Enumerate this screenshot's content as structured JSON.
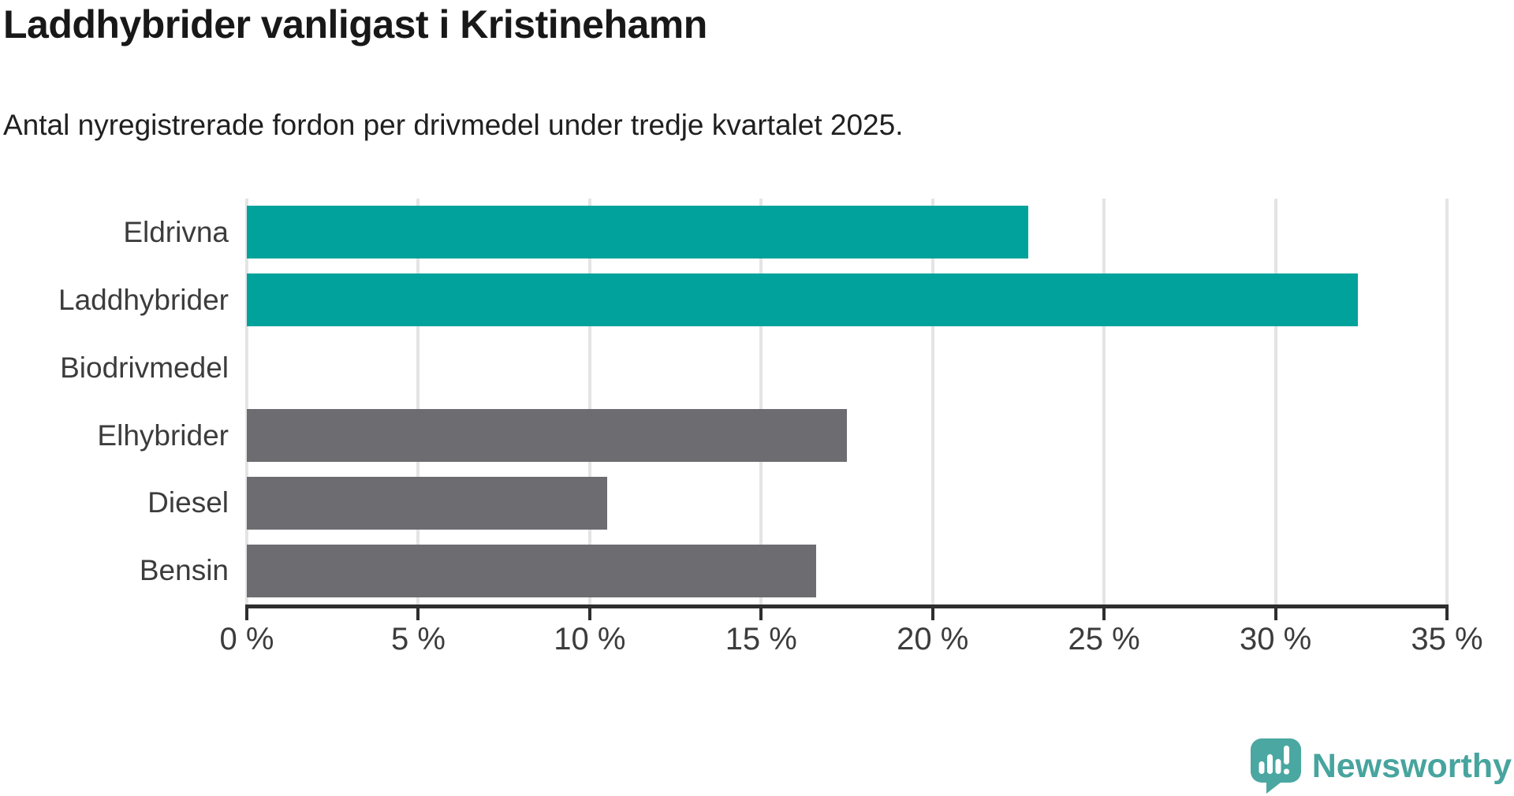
{
  "title": "Laddhybrider vanligast i Kristinehamn",
  "subtitle": "Antal nyregistrerade fordon per drivmedel under tredje kvartalet 2025.",
  "branding": {
    "logo_text": "Newsworthy",
    "logo_icon": "newsworthy-speech-bubble-bar-chart-icon",
    "logo_color": "#47a49e"
  },
  "colors": {
    "highlight_bar": "#00a29b",
    "default_bar": "#6c6c71",
    "gridline": "#e4e4e4",
    "axis": "#2e2e2e",
    "label_text": "#3c3c3c",
    "title_text": "#181818"
  },
  "chart_data": {
    "type": "bar",
    "orientation": "horizontal",
    "title": "Laddhybrider vanligast i Kristinehamn",
    "subtitle": "Antal nyregistrerade fordon per drivmedel under tredje kvartalet 2025.",
    "categories": [
      "Eldrivna",
      "Laddhybrider",
      "Biodrivmedel",
      "Elhybrider",
      "Diesel",
      "Bensin"
    ],
    "values": [
      22.8,
      32.4,
      0,
      17.5,
      10.5,
      16.6
    ],
    "unit": "%",
    "bar_colors": [
      "#00a29b",
      "#00a29b",
      "#6c6c71",
      "#6c6c71",
      "#6c6c71",
      "#6c6c71"
    ],
    "xlabel": "",
    "ylabel": "",
    "xlim": [
      0,
      35
    ],
    "x_ticks": [
      0,
      5,
      10,
      15,
      20,
      25,
      30,
      35
    ],
    "x_tick_labels": [
      "0 %",
      "5 %",
      "10 %",
      "15 %",
      "20 %",
      "25 %",
      "30 %",
      "35 %"
    ],
    "grid": "vertical",
    "legend": "none"
  }
}
